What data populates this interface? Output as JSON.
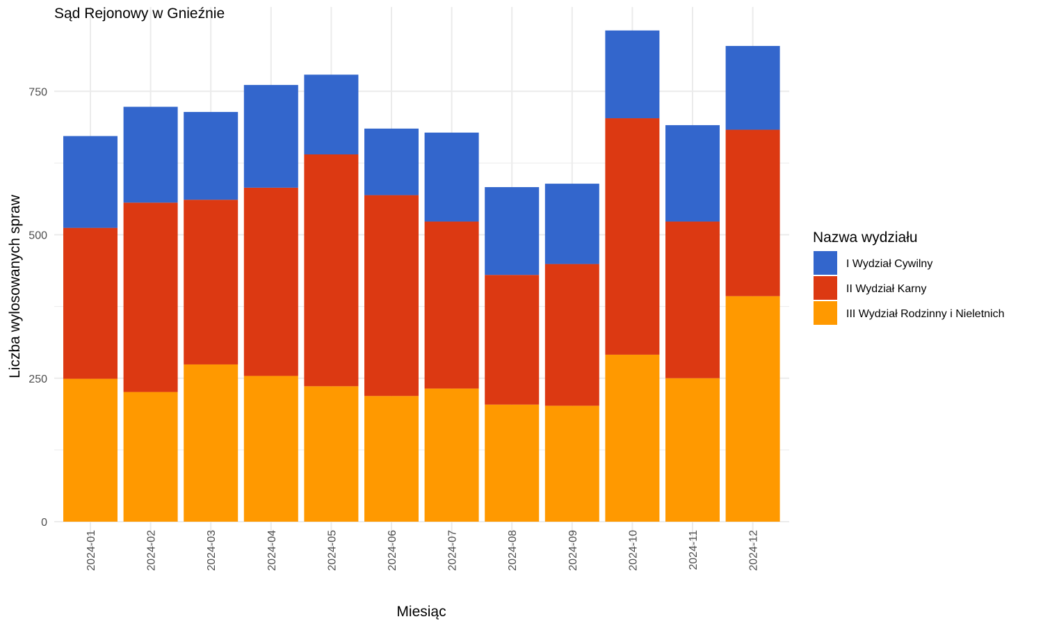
{
  "chart_data": {
    "type": "bar",
    "stacked": true,
    "title": "Sąd Rejonowy w Gnieźnie",
    "xlabel": "Miesiąc",
    "ylabel": "Liczba wylosowanych spraw",
    "ylim": [
      0,
      870
    ],
    "yticks": [
      0,
      250,
      500,
      750
    ],
    "grid": true,
    "legend_position": "right",
    "legend_title": "Nazwa wydziału",
    "categories": [
      "2024-01",
      "2024-02",
      "2024-03",
      "2024-04",
      "2024-05",
      "2024-06",
      "2024-07",
      "2024-08",
      "2024-09",
      "2024-10",
      "2024-11",
      "2024-12"
    ],
    "series": [
      {
        "name": "III Wydział Rodzinny i Nieletnich",
        "color": "#FF9900",
        "values": [
          249,
          226,
          274,
          254,
          236,
          219,
          232,
          204,
          202,
          291,
          250,
          393
        ]
      },
      {
        "name": "II Wydział Karny",
        "color": "#DC3912",
        "values": [
          263,
          330,
          287,
          328,
          404,
          350,
          291,
          226,
          247,
          412,
          273,
          290
        ]
      },
      {
        "name": "I Wydział Cywilny",
        "color": "#3366CC",
        "values": [
          160,
          167,
          153,
          179,
          139,
          116,
          155,
          153,
          140,
          153,
          168,
          146
        ]
      }
    ],
    "legend_order": [
      "I Wydział Cywilny",
      "II Wydział Karny",
      "III Wydział Rodzinny i Nieletnich"
    ]
  }
}
